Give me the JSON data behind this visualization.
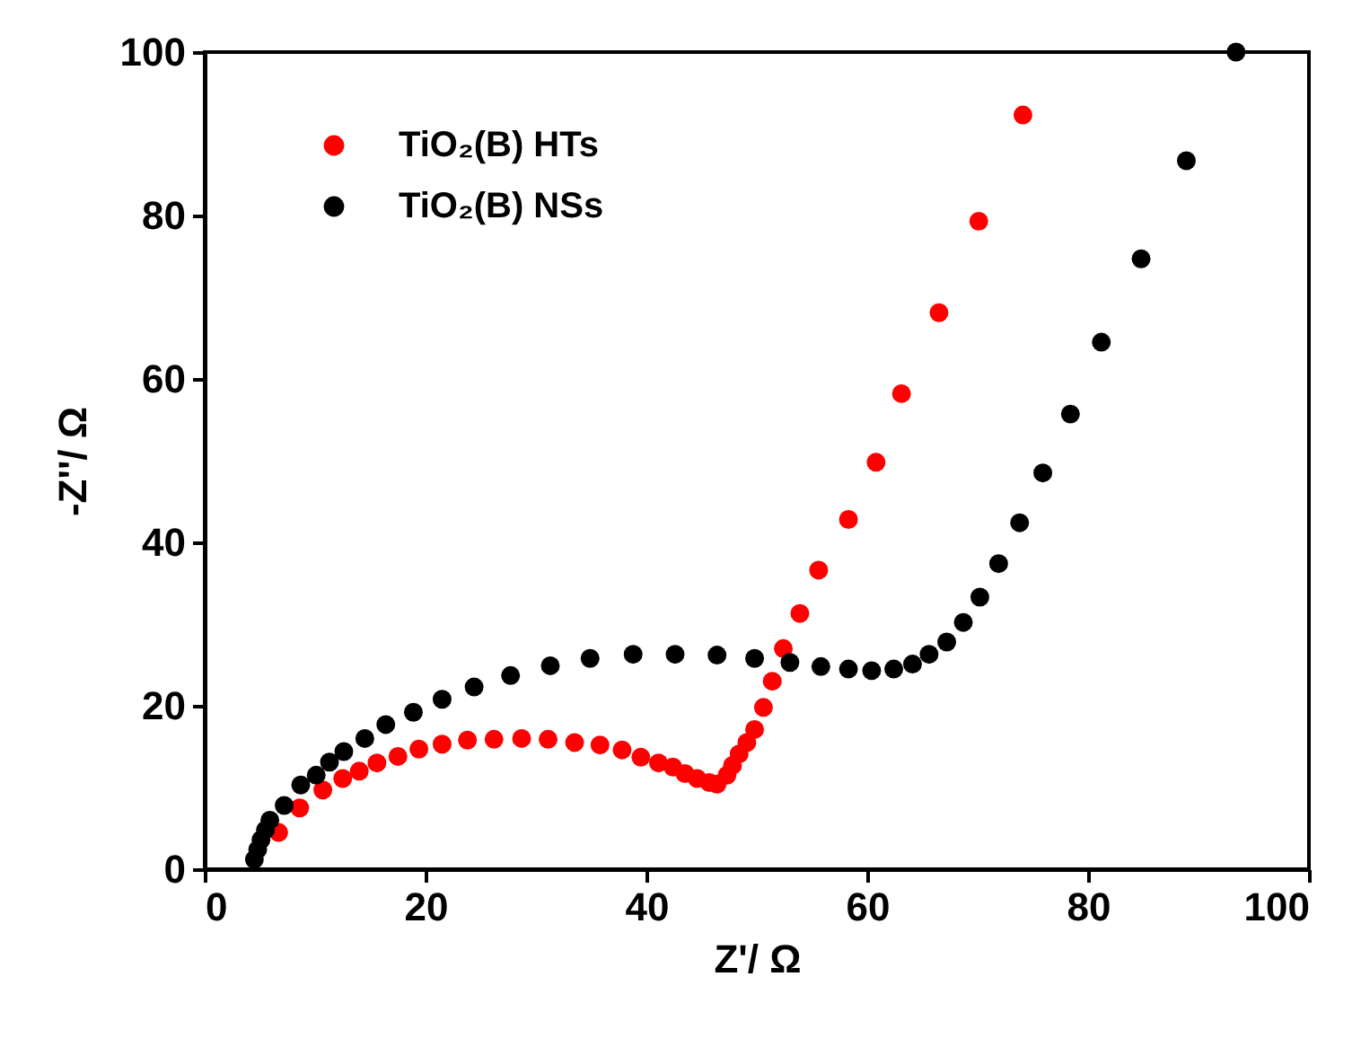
{
  "chart_data": {
    "type": "scatter",
    "xlabel": "Z'/ Ω",
    "ylabel": "-Z''/ Ω",
    "xlim": [
      0,
      100
    ],
    "ylim": [
      0,
      100
    ],
    "xticks": [
      0,
      20,
      40,
      60,
      80,
      100
    ],
    "yticks": [
      0,
      20,
      40,
      60,
      80,
      100
    ],
    "grid": false,
    "legend": "top left",
    "marker": "circle",
    "series": [
      {
        "name": "TiO₂(B) HTs",
        "color": "#ff0000",
        "x": [
          6.7,
          8.6,
          10.7,
          12.5,
          14.0,
          15.6,
          17.5,
          19.4,
          21.5,
          23.8,
          26.2,
          28.7,
          31.1,
          33.5,
          35.8,
          37.8,
          39.5,
          41.1,
          42.4,
          43.5,
          44.6,
          45.7,
          46.4,
          47.3,
          47.8,
          48.4,
          49.1,
          49.8,
          50.6,
          51.4,
          52.4,
          53.9,
          55.6,
          58.3,
          60.8,
          63.1,
          66.5,
          70.1,
          74.1
        ],
        "values": [
          4.5,
          7.5,
          9.7,
          11.1,
          12.0,
          13.0,
          13.8,
          14.7,
          15.3,
          15.8,
          15.9,
          16.0,
          15.9,
          15.5,
          15.2,
          14.6,
          13.7,
          13.0,
          12.5,
          11.7,
          11.1,
          10.6,
          10.4,
          11.5,
          12.7,
          14.1,
          15.5,
          17.1,
          19.8,
          23.0,
          27.0,
          31.3,
          36.6,
          42.8,
          49.8,
          58.2,
          68.1,
          79.3,
          92.3
        ]
      },
      {
        "name": "TiO₂(B) NSs",
        "color": "#000000",
        "x": [
          4.5,
          4.8,
          5.1,
          5.5,
          5.9,
          7.2,
          8.7,
          10.1,
          11.3,
          12.6,
          14.5,
          16.4,
          18.9,
          21.5,
          24.4,
          27.7,
          31.3,
          34.9,
          38.8,
          42.6,
          46.4,
          49.8,
          53.0,
          55.8,
          58.3,
          60.4,
          62.4,
          64.1,
          65.6,
          67.2,
          68.7,
          70.2,
          71.9,
          73.8,
          75.9,
          78.4,
          81.2,
          84.8,
          88.9,
          93.4
        ],
        "values": [
          1.2,
          2.4,
          3.6,
          4.8,
          6.0,
          7.8,
          10.3,
          11.5,
          13.1,
          14.4,
          16.0,
          17.7,
          19.2,
          20.8,
          22.3,
          23.7,
          24.9,
          25.8,
          26.3,
          26.3,
          26.2,
          25.8,
          25.3,
          24.8,
          24.5,
          24.3,
          24.5,
          25.1,
          26.3,
          27.8,
          30.2,
          33.3,
          37.4,
          42.4,
          48.5,
          55.7,
          64.5,
          74.7,
          86.7,
          100
        ]
      }
    ]
  }
}
